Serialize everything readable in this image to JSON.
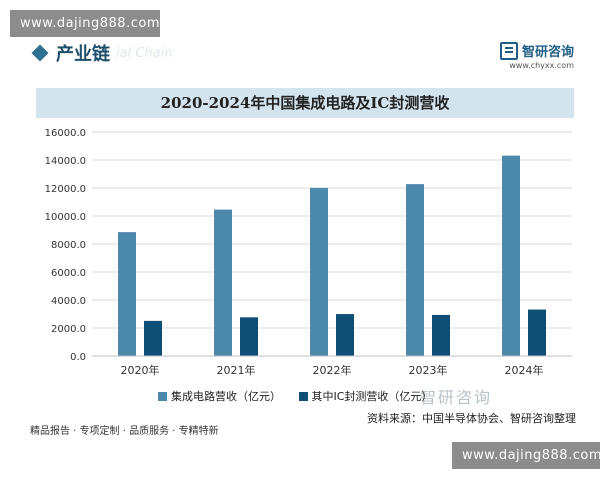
{
  "watermark": {
    "top": "www.dajing888.com",
    "bottom": "www.dajing888.com"
  },
  "header": {
    "section_title": "产业链",
    "section_subtitle": "ial Chain",
    "brand_name": "智研咨询",
    "brand_url": "www.chyxx.com"
  },
  "mid_watermark": "智研咨询",
  "chart_data": {
    "type": "bar",
    "title": "2020-2024年中国集成电路及IC封测营收",
    "categories": [
      "2020年",
      "2021年",
      "2022年",
      "2023年",
      "2024年"
    ],
    "series": [
      {
        "name": "集成电路营收（亿元）",
        "values": [
          8848,
          10458,
          12006,
          12277,
          14313
        ]
      },
      {
        "name": "其中IC封测营收（亿元）",
        "values": [
          2510,
          2763,
          2995,
          2933,
          3319
        ]
      }
    ],
    "yticks": [
      "0.0",
      "2000.0",
      "4000.0",
      "6000.0",
      "8000.0",
      "10000.0",
      "12000.0",
      "14000.0",
      "16000.0"
    ],
    "ylim": [
      0,
      16000
    ],
    "grid": true,
    "legend_position": "bottom",
    "colors": [
      "#4d89ab",
      "#0f4f75"
    ]
  },
  "source": "资料来源：中国半导体协会、智研咨询整理",
  "footer": "精品报告 · 专项定制 · 品质服务 · 专精特新"
}
